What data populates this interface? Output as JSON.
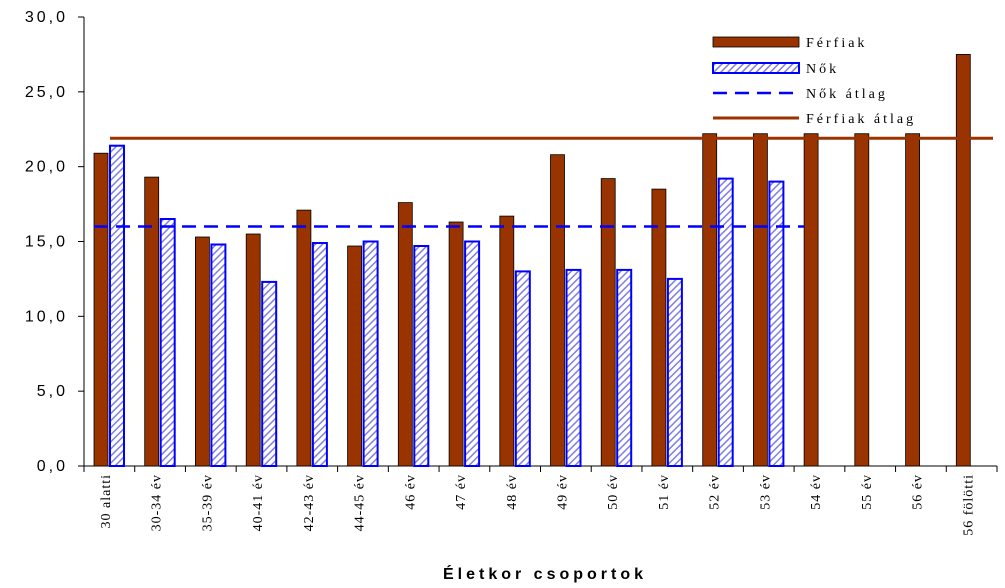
{
  "chart_data": {
    "type": "bar",
    "title": "",
    "xlabel": "Életkor csoportok",
    "ylabel": "",
    "ylim": [
      0,
      30
    ],
    "yticks": [
      "0,0",
      "5,0",
      "10,0",
      "15,0",
      "20,0",
      "25,0",
      "30,0"
    ],
    "grid": false,
    "legend_position": "top-right",
    "categories": [
      "30 alatti",
      "30-34 év",
      "35-39 év",
      "40-41 év",
      "42-43 év",
      "44-45 év",
      "46 év",
      "47 év",
      "48 év",
      "49 év",
      "50 év",
      "51 év",
      "52 év",
      "53 év",
      "54 év",
      "55 év",
      "56 év",
      "56 fölötti"
    ],
    "series": [
      {
        "name": "Férfiak",
        "kind": "bar",
        "color": "#993300",
        "values": [
          20.9,
          19.3,
          15.3,
          15.5,
          17.1,
          14.7,
          17.6,
          16.3,
          16.7,
          20.8,
          19.2,
          18.5,
          22.2,
          22.2,
          22.2,
          22.2,
          22.2,
          27.5
        ]
      },
      {
        "name": "Nők",
        "kind": "bar",
        "color": "#0000ff",
        "pattern": "diagonal-hatch",
        "values": [
          21.4,
          16.5,
          14.8,
          12.3,
          14.9,
          15.0,
          14.7,
          15.0,
          13.0,
          13.1,
          13.1,
          12.5,
          19.2,
          19.0,
          null,
          null,
          null,
          null
        ]
      },
      {
        "name": "Nők átlag",
        "kind": "line",
        "style": "dashed",
        "color": "#0000ff",
        "value": 16.0
      },
      {
        "name": "Férfiak átlag",
        "kind": "line",
        "style": "solid",
        "color": "#993300",
        "value": 21.9
      }
    ]
  }
}
